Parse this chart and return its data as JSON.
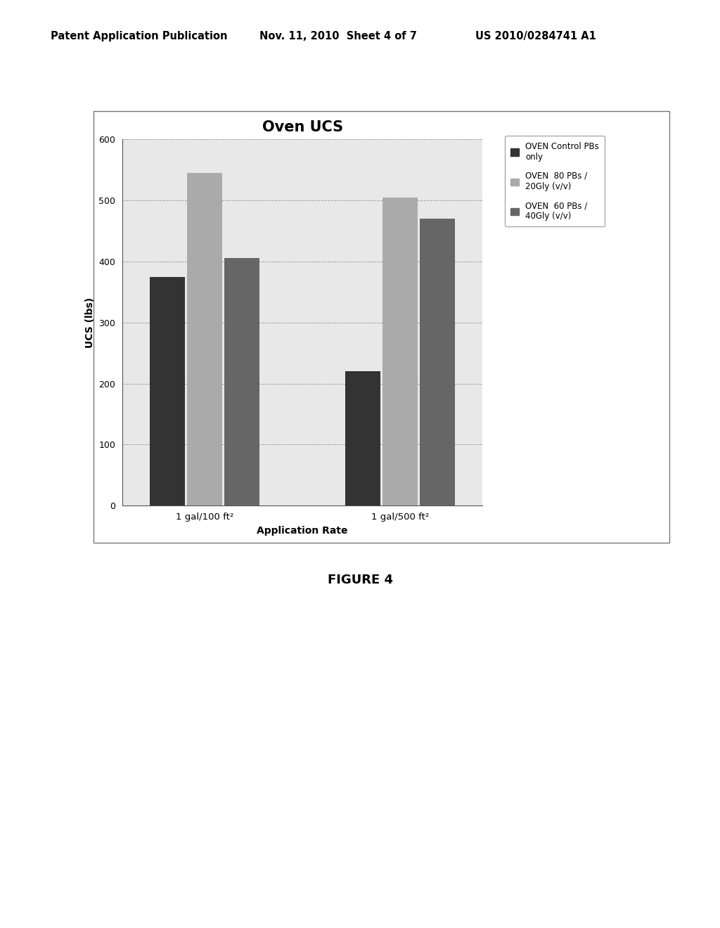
{
  "title": "Oven UCS",
  "xlabel": "Application Rate",
  "ylabel": "UCS (lbs)",
  "groups": [
    "1 gal/100 ft²",
    "1 gal/500 ft²"
  ],
  "series": [
    {
      "label": "OVEN Control PBs\nonly",
      "values": [
        375,
        220
      ],
      "color": "#333333"
    },
    {
      "label": "OVEN  80 PBs /\n20Gly (v/v)",
      "values": [
        545,
        505
      ],
      "color": "#aaaaaa"
    },
    {
      "label": "OVEN  60 PBs /\n40Gly (v/v)",
      "values": [
        405,
        470
      ],
      "color": "#666666"
    }
  ],
  "ylim": [
    0,
    600
  ],
  "yticks": [
    0,
    100,
    200,
    300,
    400,
    500,
    600
  ],
  "header_left": "Patent Application Publication",
  "header_mid": "Nov. 11, 2010  Sheet 4 of 7",
  "header_right": "US 2010/0284741 A1",
  "figure_label": "FIGURE 4",
  "bar_width": 0.18
}
